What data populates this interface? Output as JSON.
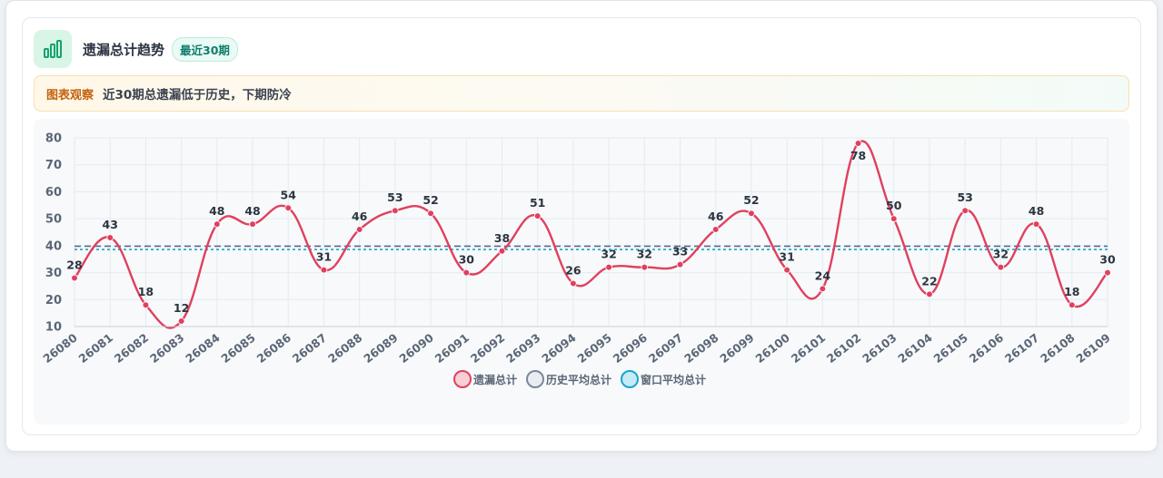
{
  "header": {
    "title": "遗漏总计趋势",
    "badge": "最近30期",
    "icon": "bar-chart-icon"
  },
  "notice": {
    "tag": "图表观察",
    "text": "近30期总遗漏低于历史，下期防冷"
  },
  "colors": {
    "series": "#e0405e",
    "history_avg": "#5b6b80",
    "window_avg": "#1aa3cf",
    "grid": "#e4ebf0",
    "tick": "#5b6676"
  },
  "chart_data": {
    "type": "line",
    "smooth": true,
    "grid": true,
    "legend_position": "bottom",
    "x": [
      "26080",
      "26081",
      "26082",
      "26083",
      "26084",
      "26085",
      "26086",
      "26087",
      "26088",
      "26089",
      "26090",
      "26091",
      "26092",
      "26093",
      "26094",
      "26095",
      "26096",
      "26097",
      "26098",
      "26099",
      "26100",
      "26101",
      "26102",
      "26103",
      "26104",
      "26105",
      "26106",
      "26107",
      "26108",
      "26109"
    ],
    "yticks": [
      10,
      20,
      30,
      40,
      50,
      60,
      70,
      80
    ],
    "ylim": [
      10,
      80
    ],
    "series": [
      {
        "name": "遗漏总计",
        "values": [
          28,
          43,
          18,
          12,
          48,
          48,
          54,
          31,
          46,
          53,
          52,
          30,
          38,
          51,
          26,
          32,
          32,
          33,
          46,
          52,
          31,
          24,
          78,
          50,
          22,
          53,
          32,
          48,
          18,
          30
        ]
      }
    ],
    "reference_lines": [
      {
        "name": "历史平均总计",
        "value": 39.8,
        "style": "dashed"
      },
      {
        "name": "窗口平均总计",
        "value": 38.6,
        "style": "dotted"
      }
    ]
  }
}
